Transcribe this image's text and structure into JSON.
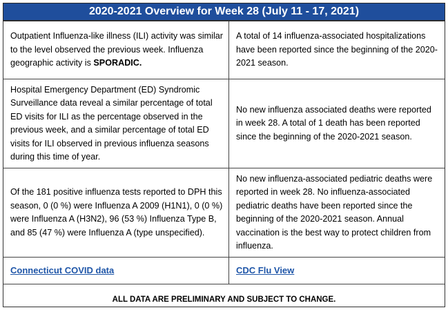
{
  "header": {
    "title": "2020-2021 Overview for Week 28 (July 11 - 17, 2021)"
  },
  "cells": {
    "ili_text": "Outpatient Influenza-like illness (ILI) activity was similar to the level observed the previous week. Influenza geographic activity is ",
    "ili_emphasis": "SPORADIC.",
    "hospitalizations": "A total of 14 influenza-associated hospitalizations have been reported since the beginning of the 2020-2021 season.",
    "ed_surveillance": "Hospital Emergency Department (ED) Syndromic Surveillance data reveal a similar percentage of total ED visits for ILI as the percentage observed in the previous week, and a similar percentage of total ED visits for ILI observed in previous influenza seasons during this time of year.",
    "deaths": "No new influenza associated deaths were reported in week 28. A total of 1 death has been reported since the beginning of the 2020-2021 season.",
    "tests": "Of the 181 positive influenza tests reported to DPH this season, 0 (0 %) were Influenza A 2009 (H1N1), 0 (0 %) were Influenza A (H3N2), 96 (53 %) Influenza Type B, and 85 (47 %) were Influenza A (type unspecified).",
    "pediatric": "No new influenza-associated pediatric deaths were reported in week 28. No influenza-associated pediatric deaths have been reported since the beginning of the 2020-2021 season. Annual vaccination is the best way to protect children from influenza."
  },
  "links": {
    "covid": "Connecticut COVID data",
    "cdc": "CDC Flu View"
  },
  "footer": {
    "disclaimer": "ALL DATA ARE PRELIMINARY AND SUBJECT TO CHANGE."
  },
  "colors": {
    "header_bg": "#1f4e9c",
    "link": "#1f56a8"
  }
}
